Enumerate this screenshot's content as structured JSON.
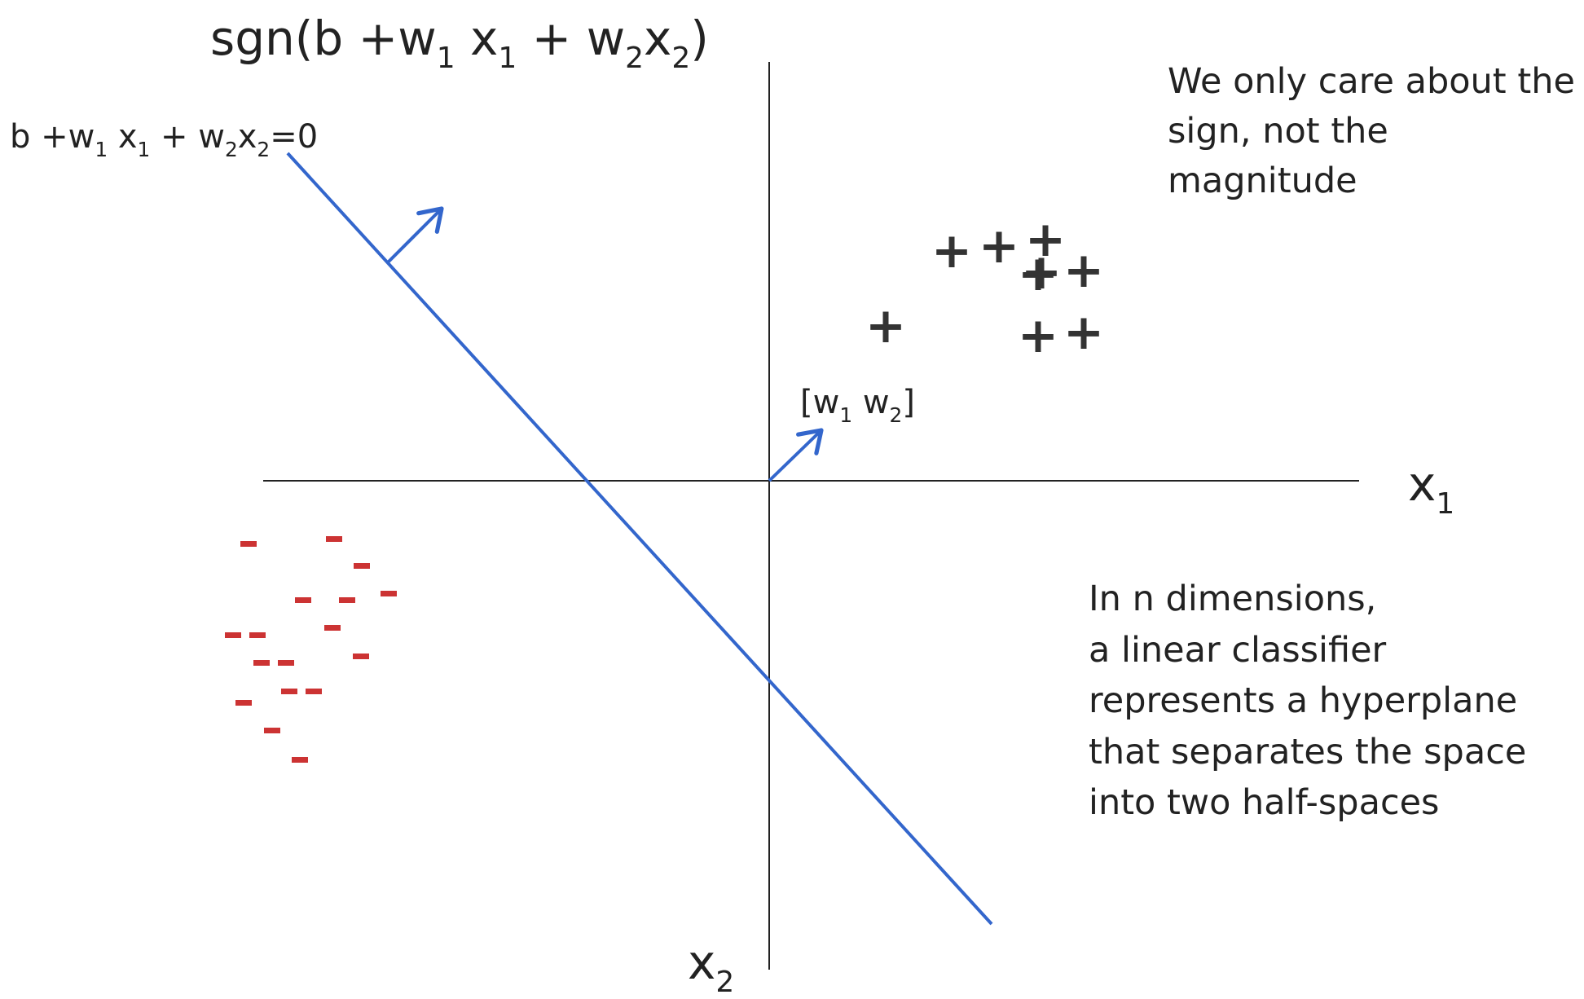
{
  "title": {
    "prefix": "sgn(b +w",
    "s1": "1",
    "m1": " x",
    "s2": "1",
    "m2": " + w",
    "s3": "2",
    "m3": "x",
    "s4": "2",
    "suffix": ")"
  },
  "boundary_label": {
    "prefix": "b +w",
    "s1": "1",
    "m1": " x",
    "s2": "1",
    "m2": " + w",
    "s3": "2",
    "m3": "x",
    "s4": "2",
    "suffix": "=0"
  },
  "weight_label": {
    "prefix": "[w",
    "s1": "1",
    "m1": " w",
    "s2": "2",
    "suffix": "]"
  },
  "axes": {
    "x1": {
      "base": "x",
      "sub": "1"
    },
    "x2": {
      "base": "x",
      "sub": "2"
    }
  },
  "notes": {
    "sign": [
      "We only care about the",
      "sign, not the magnitude"
    ],
    "dimensions": [
      "In n dimensions,",
      "a linear classifier",
      "represents a hyperplane",
      "that separates the space",
      "into two half-spaces"
    ]
  },
  "markers": {
    "positive_symbol": "+",
    "negative_symbol": "-",
    "positive_count": 9,
    "negative_count": 17
  },
  "colors": {
    "line": "#3366cc",
    "positive": "#333333",
    "negative": "#cc3333",
    "axes": "#222222"
  }
}
